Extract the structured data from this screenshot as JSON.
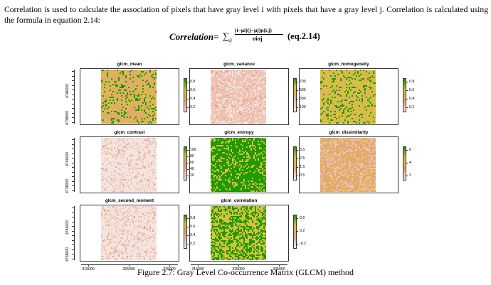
{
  "paragraph": "Correlation is used to calculate the association of pixels that have gray level i with pixels that have a gray level j. Correlation is calculated using the formula in equation 2.14:",
  "formula": {
    "lhs": "Correlation=",
    "sum_symbol": "∑",
    "sum_subscript": "ij",
    "numerator": "(i−μi)(j−μj)p(i,j)",
    "denominator": "σiσj",
    "equation_label": "(eq.2.14)"
  },
  "figure": {
    "caption": "Figure 2.7: Gray Level Co-occurrence Matrix (GLCM) method",
    "y_tick_labels": [
      "4738000",
      "4746000"
    ],
    "x_tick_labels": [
      "315000",
      "325000",
      "335000"
    ],
    "panels": [
      {
        "title": "glcm_mean",
        "palette": "mixed",
        "legend": [
          "0.8",
          "0.6",
          "0.4",
          "0.2"
        ]
      },
      {
        "title": "glcm_variance",
        "palette": "pink",
        "legend": [
          "700",
          "500",
          "300",
          "100"
        ]
      },
      {
        "title": "glcm_homogeneity",
        "palette": "yellow",
        "legend": [
          "0.8",
          "0.6",
          "0.4",
          "0.2"
        ]
      },
      {
        "title": "glcm_contrast",
        "palette": "pale",
        "legend": [
          "100",
          "80",
          "60",
          "40",
          "20"
        ]
      },
      {
        "title": "glcm_entropy",
        "palette": "green",
        "legend": [
          "3.5",
          "2.5",
          "1.5",
          "0.5"
        ]
      },
      {
        "title": "glcm_dissimilarity",
        "palette": "orange",
        "legend": [
          "6",
          "4",
          "2"
        ]
      },
      {
        "title": "glcm_second_moment",
        "palette": "pale",
        "legend": [
          "0.8",
          "0.6",
          "0.4",
          "0.2"
        ]
      },
      {
        "title": "glcm_correlation",
        "palette": "lime",
        "legend": [
          "0.6",
          "0.2",
          "-0.2"
        ]
      }
    ]
  },
  "colors": {
    "terrain_green": "#1f9a00",
    "terrain_yellow": "#d6c23a",
    "terrain_orange": "#e3a86f",
    "terrain_pink": "#efc1b3",
    "terrain_pale": "#f4e4df"
  }
}
